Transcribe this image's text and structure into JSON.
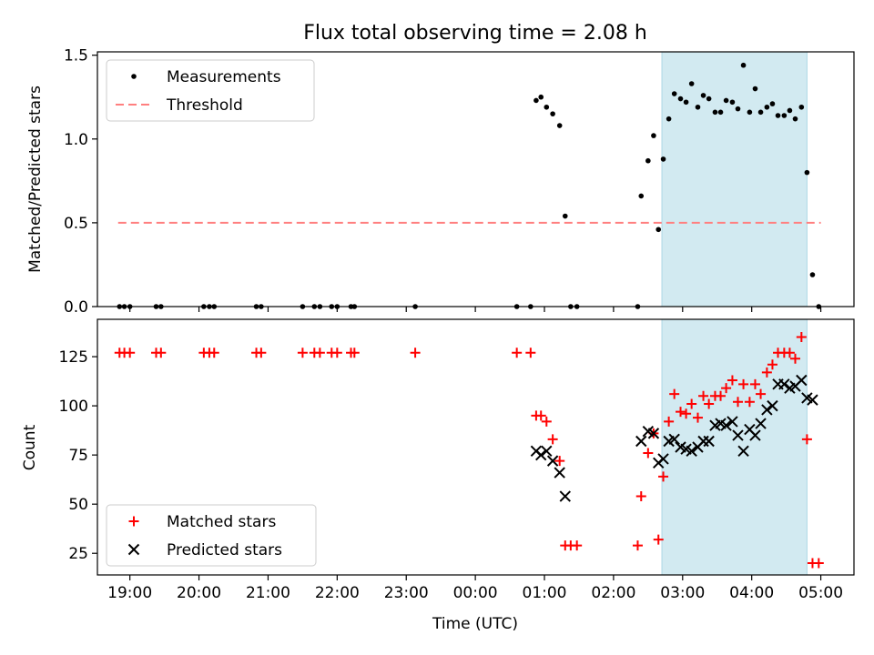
{
  "title": "Flux total observing time = 2.08 h",
  "colors": {
    "measurement": "#000000",
    "threshold": "#ff7f7f",
    "matched": "#ff0000",
    "predicted": "#000000",
    "span": "#add8e6"
  },
  "chart_data": [
    {
      "type": "scatter",
      "panel": "top",
      "title": "Flux total observing time = 2.08 h",
      "xlabel": "",
      "ylabel": "Matched/Predicted stars",
      "xlim": [
        18.53,
        5.48
      ],
      "ylim": [
        0,
        1.52
      ],
      "yticks": [
        0.0,
        0.5,
        1.0,
        1.5
      ],
      "ytick_labels": [
        "0.0",
        "0.5",
        "1.0",
        "1.5"
      ],
      "shaded_span": {
        "x0": 2.7,
        "x1": 4.8
      },
      "threshold": {
        "y": 0.5,
        "x0": 18.83,
        "x1": 5.0,
        "label": "Threshold"
      },
      "legend": {
        "position": "top-left",
        "entries": [
          "Measurements",
          "Threshold"
        ]
      },
      "series": [
        {
          "name": "Measurements",
          "points": [
            [
              18.85,
              0
            ],
            [
              18.92,
              0
            ],
            [
              19.0,
              0
            ],
            [
              19.38,
              0
            ],
            [
              19.45,
              0
            ],
            [
              20.07,
              0
            ],
            [
              20.15,
              0
            ],
            [
              20.22,
              0
            ],
            [
              20.83,
              0
            ],
            [
              20.9,
              0
            ],
            [
              21.5,
              0
            ],
            [
              21.67,
              0
            ],
            [
              21.75,
              0
            ],
            [
              21.92,
              0
            ],
            [
              22.0,
              0
            ],
            [
              22.2,
              0
            ],
            [
              22.25,
              0
            ],
            [
              23.13,
              0
            ],
            [
              0.6,
              0
            ],
            [
              0.8,
              0
            ],
            [
              0.88,
              1.23
            ],
            [
              0.95,
              1.25
            ],
            [
              1.03,
              1.19
            ],
            [
              1.12,
              1.15
            ],
            [
              1.22,
              1.08
            ],
            [
              1.3,
              0.54
            ],
            [
              1.38,
              0
            ],
            [
              1.47,
              0
            ],
            [
              2.35,
              0
            ],
            [
              2.4,
              0.66
            ],
            [
              2.5,
              0.87
            ],
            [
              2.58,
              1.02
            ],
            [
              2.65,
              0.46
            ],
            [
              2.72,
              0.88
            ],
            [
              2.8,
              1.12
            ],
            [
              2.88,
              1.27
            ],
            [
              2.97,
              1.24
            ],
            [
              3.05,
              1.22
            ],
            [
              3.13,
              1.33
            ],
            [
              3.22,
              1.19
            ],
            [
              3.3,
              1.26
            ],
            [
              3.38,
              1.24
            ],
            [
              3.47,
              1.16
            ],
            [
              3.55,
              1.16
            ],
            [
              3.63,
              1.23
            ],
            [
              3.72,
              1.22
            ],
            [
              3.8,
              1.18
            ],
            [
              3.88,
              1.44
            ],
            [
              3.97,
              1.16
            ],
            [
              4.05,
              1.3
            ],
            [
              4.13,
              1.16
            ],
            [
              4.22,
              1.19
            ],
            [
              4.3,
              1.21
            ],
            [
              4.38,
              1.14
            ],
            [
              4.47,
              1.14
            ],
            [
              4.55,
              1.17
            ],
            [
              4.63,
              1.12
            ],
            [
              4.72,
              1.19
            ],
            [
              4.8,
              0.8
            ],
            [
              4.88,
              0.19
            ],
            [
              4.97,
              0
            ]
          ]
        }
      ]
    },
    {
      "type": "scatter",
      "panel": "bottom",
      "xlabel": "Time (UTC)",
      "ylabel": "Count",
      "xlim": [
        18.53,
        5.48
      ],
      "ylim": [
        14,
        144
      ],
      "yticks": [
        25,
        50,
        75,
        100,
        125
      ],
      "ytick_labels": [
        "25",
        "50",
        "75",
        "100",
        "125"
      ],
      "xticks": [
        19,
        20,
        21,
        22,
        23,
        0,
        1,
        2,
        3,
        4,
        5
      ],
      "xtick_labels": [
        "19:00",
        "20:00",
        "21:00",
        "22:00",
        "23:00",
        "00:00",
        "01:00",
        "02:00",
        "03:00",
        "04:00",
        "05:00"
      ],
      "shaded_span": {
        "x0": 2.7,
        "x1": 4.8
      },
      "legend": {
        "position": "bottom-left",
        "entries": [
          "Matched stars",
          "Predicted stars"
        ]
      },
      "series": [
        {
          "name": "Matched stars",
          "marker": "+",
          "points": [
            [
              18.85,
              127
            ],
            [
              18.92,
              127
            ],
            [
              19.0,
              127
            ],
            [
              19.38,
              127
            ],
            [
              19.45,
              127
            ],
            [
              20.07,
              127
            ],
            [
              20.15,
              127
            ],
            [
              20.22,
              127
            ],
            [
              20.83,
              127
            ],
            [
              20.9,
              127
            ],
            [
              21.5,
              127
            ],
            [
              21.67,
              127
            ],
            [
              21.75,
              127
            ],
            [
              21.92,
              127
            ],
            [
              22.0,
              127
            ],
            [
              22.2,
              127
            ],
            [
              22.25,
              127
            ],
            [
              23.13,
              127
            ],
            [
              0.6,
              127
            ],
            [
              0.8,
              127
            ],
            [
              0.88,
              95
            ],
            [
              0.95,
              95
            ],
            [
              1.03,
              92
            ],
            [
              1.12,
              83
            ],
            [
              1.22,
              72
            ],
            [
              1.3,
              29
            ],
            [
              1.38,
              29
            ],
            [
              1.47,
              29
            ],
            [
              2.35,
              29
            ],
            [
              2.4,
              54
            ],
            [
              2.5,
              76
            ],
            [
              2.58,
              86
            ],
            [
              2.65,
              32
            ],
            [
              2.72,
              64
            ],
            [
              2.8,
              92
            ],
            [
              2.88,
              106
            ],
            [
              2.97,
              97
            ],
            [
              3.05,
              96
            ],
            [
              3.13,
              101
            ],
            [
              3.22,
              94
            ],
            [
              3.3,
              105
            ],
            [
              3.38,
              101
            ],
            [
              3.47,
              105
            ],
            [
              3.55,
              105
            ],
            [
              3.63,
              109
            ],
            [
              3.72,
              113
            ],
            [
              3.8,
              102
            ],
            [
              3.88,
              111
            ],
            [
              3.97,
              102
            ],
            [
              4.05,
              111
            ],
            [
              4.13,
              106
            ],
            [
              4.22,
              117
            ],
            [
              4.3,
              121
            ],
            [
              4.38,
              127
            ],
            [
              4.47,
              127
            ],
            [
              4.55,
              127
            ],
            [
              4.63,
              124
            ],
            [
              4.72,
              135
            ],
            [
              4.8,
              83
            ],
            [
              4.88,
              20
            ],
            [
              4.97,
              20
            ]
          ]
        },
        {
          "name": "Predicted stars",
          "marker": "x",
          "points": [
            [
              0.88,
              77
            ],
            [
              0.95,
              75
            ],
            [
              1.03,
              77
            ],
            [
              1.12,
              72
            ],
            [
              1.22,
              66
            ],
            [
              1.3,
              54
            ],
            [
              2.4,
              82
            ],
            [
              2.5,
              87
            ],
            [
              2.58,
              86
            ],
            [
              2.65,
              71
            ],
            [
              2.72,
              73
            ],
            [
              2.8,
              82
            ],
            [
              2.88,
              83
            ],
            [
              2.97,
              79
            ],
            [
              3.05,
              78
            ],
            [
              3.13,
              77
            ],
            [
              3.22,
              79
            ],
            [
              3.3,
              82
            ],
            [
              3.38,
              82
            ],
            [
              3.47,
              90
            ],
            [
              3.55,
              91
            ],
            [
              3.63,
              90
            ],
            [
              3.72,
              92
            ],
            [
              3.8,
              85
            ],
            [
              3.88,
              77
            ],
            [
              3.97,
              88
            ],
            [
              4.05,
              85
            ],
            [
              4.13,
              91
            ],
            [
              4.22,
              98
            ],
            [
              4.3,
              100
            ],
            [
              4.38,
              111
            ],
            [
              4.47,
              111
            ],
            [
              4.55,
              109
            ],
            [
              4.63,
              110
            ],
            [
              4.72,
              113
            ],
            [
              4.8,
              104
            ],
            [
              4.88,
              103
            ]
          ]
        }
      ]
    }
  ]
}
